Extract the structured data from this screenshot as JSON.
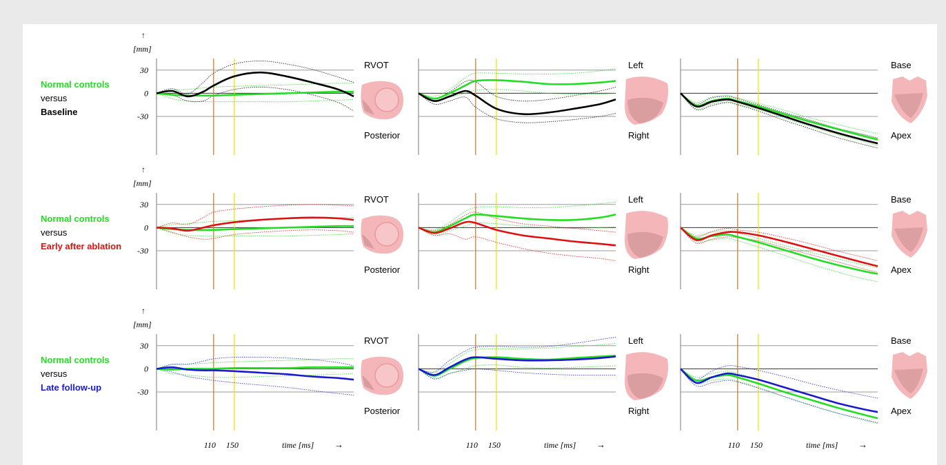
{
  "figure": {
    "units_label": "[mm]",
    "up_arrow": "↑",
    "y_ticks": [
      "30",
      "0",
      "-30"
    ],
    "x_ticks": [
      "110",
      "150"
    ],
    "time_label": "time [ms]",
    "time_arrow": "→",
    "colors": {
      "normal": "#22dd22",
      "baseline": "#000000",
      "early": "#dd1111",
      "late": "#1a1acc",
      "line_110": "#e07a2a",
      "line_150": "#f2e600",
      "heart": "#f4b6b8"
    }
  },
  "rows": [
    {
      "label_normal": "Normal controls",
      "label_versus": "versus",
      "label_group": "Baseline",
      "group_color": "#000000"
    },
    {
      "label_normal": "Normal controls",
      "label_versus": "versus",
      "label_group": "Early after ablation",
      "group_color": "#dd1111"
    },
    {
      "label_normal": "Normal controls",
      "label_versus": "versus",
      "label_group": "Late follow-up",
      "group_color": "#1a1acc"
    }
  ],
  "views": [
    {
      "top_label": "RVOT",
      "bottom_label": "Posterior"
    },
    {
      "top_label": "Left",
      "bottom_label": "Right"
    },
    {
      "top_label": "Base",
      "bottom_label": "Apex"
    }
  ],
  "chart_data": {
    "type": "line",
    "x_unit": "time [ms]",
    "y_unit": "[mm]",
    "ylim": [
      -80,
      45
    ],
    "xlim": [
      0,
      380
    ],
    "vertical_markers_ms": [
      110,
      150
    ],
    "x": [
      0,
      30,
      60,
      90,
      110,
      150,
      200,
      250,
      300,
      350,
      380
    ],
    "panels": [
      {
        "row": 0,
        "view": "RVOT/Posterior",
        "series": [
          {
            "group": "normal",
            "mean": [
              0,
              -2,
              -3,
              -3,
              -3,
              -2,
              -1,
              0,
              1,
              2,
              2
            ],
            "upper": [
              0,
              4,
              5,
              7,
              8,
              9,
              10,
              11,
              12,
              13,
              13
            ],
            "lower": [
              0,
              -7,
              -10,
              -11,
              -11,
              -11,
              -11,
              -11,
              -10,
              -9,
              -8
            ]
          },
          {
            "group": "baseline",
            "mean": [
              0,
              3,
              -4,
              2,
              10,
              22,
              27,
              22,
              14,
              5,
              -4
            ],
            "upper": [
              0,
              6,
              -1,
              14,
              26,
              38,
              42,
              38,
              31,
              21,
              14
            ],
            "lower": [
              0,
              -2,
              -10,
              -10,
              -3,
              5,
              8,
              5,
              -2,
              -12,
              -23
            ]
          }
        ]
      },
      {
        "row": 0,
        "view": "Left/Right",
        "series": [
          {
            "group": "normal",
            "mean": [
              0,
              -7,
              0,
              10,
              16,
              17,
              15,
              12,
              12,
              14,
              16
            ],
            "upper": [
              0,
              -4,
              5,
              20,
              26,
              26,
              25,
              25,
              26,
              29,
              32
            ],
            "lower": [
              0,
              -10,
              -5,
              0,
              4,
              5,
              3,
              0,
              -1,
              -1,
              0
            ]
          },
          {
            "group": "baseline",
            "mean": [
              0,
              -10,
              -4,
              3,
              -3,
              -20,
              -27,
              -25,
              -20,
              -14,
              -8
            ],
            "upper": [
              0,
              -7,
              2,
              15,
              15,
              -4,
              -10,
              -8,
              -3,
              3,
              8
            ],
            "lower": [
              0,
              -14,
              -10,
              -5,
              -18,
              -33,
              -38,
              -37,
              -34,
              -30,
              -26
            ]
          }
        ]
      },
      {
        "row": 0,
        "view": "Base/Apex",
        "series": [
          {
            "group": "normal",
            "mean": [
              0,
              -16,
              -10,
              -7,
              -10,
              -17,
              -27,
              -37,
              -46,
              -55,
              -60
            ],
            "upper": [
              0,
              -12,
              -5,
              -3,
              -6,
              -13,
              -22,
              -32,
              -40,
              -48,
              -52
            ],
            "lower": [
              0,
              -20,
              -14,
              -11,
              -14,
              -21,
              -32,
              -43,
              -53,
              -62,
              -68
            ]
          },
          {
            "group": "baseline",
            "mean": [
              0,
              -17,
              -11,
              -8,
              -11,
              -19,
              -30,
              -41,
              -51,
              -60,
              -65
            ],
            "upper": [
              0,
              -14,
              -6,
              -4,
              -7,
              -15,
              -25,
              -35,
              -45,
              -53,
              -58
            ],
            "lower": [
              0,
              -21,
              -16,
              -12,
              -15,
              -23,
              -35,
              -46,
              -57,
              -66,
              -71
            ]
          }
        ]
      },
      {
        "row": 1,
        "view": "RVOT/Posterior",
        "series": [
          {
            "group": "normal",
            "mean": [
              0,
              -2,
              -3,
              -3,
              -3,
              -2,
              -1,
              0,
              1,
              2,
              2
            ],
            "upper": [
              0,
              4,
              5,
              7,
              8,
              9,
              10,
              11,
              12,
              13,
              13
            ],
            "lower": [
              0,
              -7,
              -10,
              -11,
              -11,
              -11,
              -11,
              -11,
              -10,
              -9,
              -8
            ]
          },
          {
            "group": "early",
            "mean": [
              0,
              -1,
              -4,
              0,
              3,
              7,
              10,
              12,
              13,
              12,
              10
            ],
            "upper": [
              0,
              6,
              4,
              13,
              20,
              24,
              27,
              29,
              30,
              29,
              28
            ],
            "lower": [
              0,
              -6,
              -12,
              -15,
              -14,
              -9,
              -6,
              -4,
              -3,
              -4,
              -6
            ]
          }
        ]
      },
      {
        "row": 1,
        "view": "Left/Right",
        "series": [
          {
            "group": "normal",
            "mean": [
              0,
              -6,
              2,
              12,
              17,
              15,
              12,
              10,
              10,
              13,
              17
            ],
            "upper": [
              0,
              -3,
              7,
              21,
              26,
              27,
              26,
              26,
              28,
              31,
              33
            ],
            "lower": [
              0,
              -10,
              -4,
              2,
              6,
              5,
              2,
              0,
              -1,
              0,
              1
            ]
          },
          {
            "group": "early",
            "mean": [
              0,
              -7,
              -1,
              7,
              6,
              -3,
              -10,
              -14,
              -18,
              -21,
              -23
            ],
            "upper": [
              0,
              -4,
              4,
              16,
              20,
              12,
              5,
              2,
              -1,
              -4,
              -6
            ],
            "lower": [
              0,
              -10,
              -8,
              -15,
              -12,
              -19,
              -27,
              -33,
              -37,
              -40,
              -43
            ]
          }
        ]
      },
      {
        "row": 1,
        "view": "Base/Apex",
        "series": [
          {
            "group": "normal",
            "mean": [
              0,
              -14,
              -11,
              -9,
              -12,
              -19,
              -29,
              -39,
              -48,
              -56,
              -60
            ],
            "upper": [
              0,
              -10,
              -6,
              -4,
              -7,
              -14,
              -23,
              -32,
              -40,
              -48,
              -52
            ],
            "lower": [
              0,
              -18,
              -16,
              -14,
              -17,
              -25,
              -36,
              -47,
              -57,
              -66,
              -70
            ]
          },
          {
            "group": "early",
            "mean": [
              0,
              -16,
              -10,
              -6,
              -6,
              -10,
              -18,
              -27,
              -36,
              -45,
              -50
            ],
            "upper": [
              0,
              -12,
              -5,
              -1,
              -3,
              -6,
              -13,
              -21,
              -30,
              -38,
              -43
            ],
            "lower": [
              0,
              -20,
              -15,
              -12,
              -13,
              -17,
              -26,
              -35,
              -44,
              -53,
              -58
            ]
          }
        ]
      },
      {
        "row": 2,
        "view": "RVOT/Posterior",
        "series": [
          {
            "group": "normal",
            "mean": [
              0,
              -1,
              0,
              0,
              0,
              1,
              1,
              1,
              2,
              2,
              2
            ],
            "upper": [
              0,
              5,
              6,
              7,
              8,
              9,
              10,
              11,
              12,
              13,
              13
            ],
            "lower": [
              0,
              -6,
              -8,
              -10,
              -11,
              -11,
              -10,
              -9,
              -8,
              -7,
              -6
            ]
          },
          {
            "group": "late",
            "mean": [
              0,
              2,
              -1,
              -2,
              -2,
              -3,
              -5,
              -7,
              -10,
              -12,
              -14
            ],
            "upper": [
              0,
              6,
              6,
              10,
              13,
              15,
              15,
              14,
              12,
              8,
              4
            ],
            "lower": [
              0,
              -4,
              -10,
              -13,
              -15,
              -18,
              -21,
              -24,
              -28,
              -32,
              -34
            ]
          }
        ]
      },
      {
        "row": 2,
        "view": "Left/Right",
        "series": [
          {
            "group": "normal",
            "mean": [
              0,
              -9,
              0,
              10,
              14,
              15,
              13,
              12,
              14,
              16,
              17
            ],
            "upper": [
              0,
              -5,
              7,
              20,
              25,
              26,
              26,
              27,
              29,
              31,
              33
            ],
            "lower": [
              0,
              -12,
              -6,
              0,
              4,
              5,
              2,
              1,
              2,
              3,
              4
            ]
          },
          {
            "group": "late",
            "mean": [
              0,
              -8,
              2,
              12,
              15,
              13,
              11,
              11,
              12,
              14,
              16
            ],
            "upper": [
              0,
              -4,
              11,
              23,
              28,
              29,
              28,
              29,
              33,
              38,
              41
            ],
            "lower": [
              0,
              -13,
              -6,
              -2,
              0,
              -2,
              -5,
              -7,
              -8,
              -8,
              -8
            ]
          }
        ]
      },
      {
        "row": 2,
        "view": "Base/Apex",
        "series": [
          {
            "group": "normal",
            "mean": [
              0,
              -15,
              -11,
              -8,
              -11,
              -19,
              -30,
              -40,
              -50,
              -59,
              -64
            ],
            "upper": [
              0,
              -11,
              -6,
              -3,
              -6,
              -14,
              -24,
              -34,
              -44,
              -52,
              -57
            ],
            "lower": [
              0,
              -19,
              -15,
              -13,
              -16,
              -24,
              -36,
              -47,
              -57,
              -66,
              -71
            ]
          },
          {
            "group": "late",
            "mean": [
              0,
              -18,
              -11,
              -6,
              -8,
              -14,
              -24,
              -34,
              -44,
              -52,
              -56
            ],
            "upper": [
              0,
              -14,
              -3,
              4,
              3,
              -2,
              -10,
              -19,
              -27,
              -34,
              -38
            ],
            "lower": [
              0,
              -22,
              -18,
              -15,
              -17,
              -25,
              -36,
              -47,
              -57,
              -65,
              -70
            ]
          }
        ]
      }
    ]
  }
}
